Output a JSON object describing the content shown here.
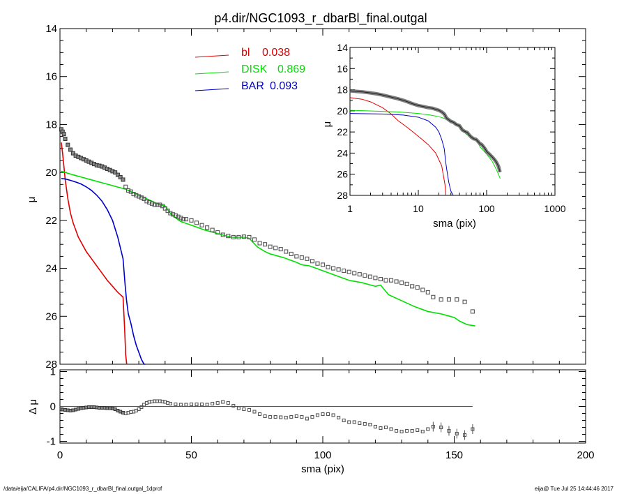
{
  "title": "p4.dir/NGC1093_r_dbarBl_final.outgal",
  "footer": {
    "left": "/data/eija/CALIFA/p4.dir/NGC1093_r_dbarBl_final.outgal_1dprof",
    "right": "eija@  Tue Jul 25 14:44:46 2017"
  },
  "chart_data": [
    {
      "type": "line",
      "panel": "main",
      "xlabel": "",
      "ylabel": "μ",
      "xlim": [
        0,
        200
      ],
      "ylim": [
        28,
        14
      ],
      "y_inverted": true,
      "yticks": [
        "14",
        "16",
        "18",
        "20",
        "22",
        "24",
        "26",
        "28"
      ],
      "legend_position": "top-center",
      "series": [
        {
          "name": "bl",
          "value_label": "0.038",
          "color": "#e00000",
          "x": [
            0.5,
            1,
            2,
            3,
            4,
            5,
            6,
            7,
            8,
            10,
            12,
            14,
            16,
            18,
            20,
            22,
            24,
            24.6,
            25,
            25.4
          ],
          "y": [
            18.75,
            19.2,
            20.3,
            21.1,
            21.7,
            22.1,
            22.4,
            22.7,
            22.9,
            23.3,
            23.6,
            23.9,
            24.2,
            24.5,
            24.75,
            25.0,
            25.2,
            26.5,
            27.6,
            28.0
          ]
        },
        {
          "name": "DISK",
          "value_label": "0.869",
          "color": "#00e000",
          "x": [
            0.5,
            5,
            10,
            15,
            20,
            25,
            30,
            35,
            38,
            40,
            42,
            44,
            46,
            50,
            55,
            60,
            65,
            70,
            72,
            75,
            78,
            80,
            85,
            90,
            92,
            95,
            100,
            105,
            110,
            115,
            120,
            122,
            125,
            130,
            135,
            140,
            145,
            150,
            152,
            155,
            158
          ],
          "y": [
            19.95,
            20.1,
            20.25,
            20.4,
            20.55,
            20.7,
            20.95,
            21.2,
            21.35,
            21.4,
            21.7,
            21.9,
            22.05,
            22.2,
            22.4,
            22.55,
            22.7,
            22.7,
            22.75,
            23.1,
            23.3,
            23.4,
            23.55,
            23.75,
            23.85,
            23.9,
            24.1,
            24.3,
            24.5,
            24.6,
            24.75,
            24.7,
            25.1,
            25.35,
            25.6,
            25.8,
            25.9,
            26.05,
            26.2,
            26.35,
            26.4
          ]
        },
        {
          "name": "BAR",
          "value_label": "0.093",
          "color": "#0000c8",
          "x": [
            0.5,
            2,
            4,
            6,
            8,
            10,
            12,
            14,
            16,
            18,
            20,
            22,
            24,
            24.8,
            25.3,
            26,
            27,
            28,
            29,
            30,
            31,
            32,
            32.5
          ],
          "y": [
            20.25,
            20.27,
            20.33,
            20.4,
            20.48,
            20.6,
            20.75,
            20.95,
            21.2,
            21.55,
            22.0,
            22.7,
            23.6,
            24.7,
            25.3,
            25.9,
            26.3,
            26.8,
            27.2,
            27.5,
            27.8,
            28.0,
            28.0
          ]
        },
        {
          "name": "",
          "value_label": "",
          "color": "#555555",
          "role": "observed",
          "x": [
            0.5,
            1,
            1.5,
            2,
            3,
            4,
            5,
            6,
            7,
            8,
            9,
            10,
            11,
            12,
            13,
            14,
            15,
            16,
            17,
            18,
            19,
            20,
            21,
            22,
            23,
            24,
            25,
            26,
            27,
            28,
            29,
            30,
            31,
            32,
            33,
            34,
            35,
            36,
            37,
            38,
            39,
            40,
            41,
            42,
            43,
            44,
            45,
            46,
            47,
            48,
            50,
            52,
            54,
            56,
            58,
            60,
            62,
            64,
            66,
            68,
            70,
            72,
            74,
            76,
            78,
            80,
            82,
            84,
            86,
            88,
            90,
            92,
            94,
            96,
            98,
            100,
            102,
            104,
            106,
            108,
            110,
            112,
            114,
            116,
            118,
            120,
            122,
            124,
            126,
            128,
            130,
            132,
            134,
            136,
            138,
            140,
            142,
            145,
            148,
            151,
            154,
            157
          ],
          "y": [
            18.2,
            18.3,
            18.4,
            18.6,
            18.85,
            19.05,
            19.2,
            19.3,
            19.35,
            19.4,
            19.45,
            19.5,
            19.55,
            19.6,
            19.65,
            19.7,
            19.72,
            19.75,
            19.8,
            19.85,
            19.9,
            19.95,
            20.0,
            20.1,
            20.2,
            20.3,
            20.6,
            20.75,
            20.8,
            20.9,
            20.95,
            21.0,
            21.05,
            21.1,
            21.2,
            21.25,
            21.3,
            21.35,
            21.35,
            21.35,
            21.4,
            21.5,
            21.6,
            21.7,
            21.75,
            21.8,
            21.85,
            21.9,
            21.95,
            21.95,
            22.0,
            22.1,
            22.2,
            22.3,
            22.4,
            22.5,
            22.6,
            22.65,
            22.7,
            22.7,
            22.68,
            22.7,
            22.8,
            22.95,
            23.0,
            23.1,
            23.15,
            23.2,
            23.3,
            23.4,
            23.5,
            23.55,
            23.6,
            23.7,
            23.8,
            23.85,
            23.95,
            24.0,
            24.05,
            24.1,
            24.15,
            24.2,
            24.25,
            24.3,
            24.35,
            24.4,
            24.45,
            24.5,
            24.5,
            24.55,
            24.6,
            24.65,
            24.75,
            24.8,
            24.9,
            25.0,
            25.2,
            25.3,
            25.3,
            25.3,
            25.4,
            25.8
          ]
        }
      ]
    },
    {
      "type": "scatter",
      "panel": "residual",
      "xlabel": "sma (pix)",
      "ylabel": "Δ μ",
      "xlim": [
        0,
        200
      ],
      "ylim": [
        -1.05,
        1.05
      ],
      "xticks": [
        "0",
        "50",
        "100",
        "150",
        "200"
      ],
      "yticks": [
        "1",
        "0",
        "-1"
      ],
      "reference_line": 0,
      "series": [
        {
          "name": "",
          "role": "residual",
          "x": [
            0.5,
            1,
            2,
            3,
            4,
            5,
            6,
            7,
            8,
            9,
            10,
            11,
            12,
            13,
            14,
            15,
            16,
            17,
            18,
            19,
            20,
            21,
            22,
            23,
            24,
            25,
            26,
            27,
            28,
            29,
            30,
            31,
            32,
            33,
            34,
            35,
            36,
            37,
            38,
            39,
            40,
            41,
            42,
            44,
            46,
            48,
            50,
            52,
            54,
            56,
            58,
            60,
            62,
            64,
            66,
            68,
            70,
            72,
            74,
            76,
            78,
            80,
            82,
            84,
            86,
            88,
            90,
            92,
            94,
            96,
            98,
            100,
            102,
            104,
            106,
            108,
            110,
            112,
            114,
            116,
            118,
            120,
            122,
            124,
            126,
            128,
            130,
            132,
            134,
            136,
            138,
            140,
            142,
            145,
            148,
            151,
            154,
            157
          ],
          "y": [
            -0.08,
            -0.09,
            -0.1,
            -0.11,
            -0.12,
            -0.11,
            -0.09,
            -0.07,
            -0.05,
            -0.04,
            -0.03,
            -0.02,
            -0.02,
            -0.02,
            -0.03,
            -0.04,
            -0.04,
            -0.04,
            -0.05,
            -0.05,
            -0.06,
            -0.08,
            -0.12,
            -0.15,
            -0.18,
            -0.2,
            -0.18,
            -0.16,
            -0.15,
            -0.12,
            -0.08,
            -0.02,
            0.05,
            0.1,
            0.13,
            0.14,
            0.15,
            0.15,
            0.15,
            0.14,
            0.13,
            0.1,
            0.08,
            0.06,
            0.05,
            0.05,
            0.06,
            0.06,
            0.06,
            0.05,
            0.08,
            0.1,
            0.13,
            0.1,
            0.02,
            -0.05,
            -0.08,
            -0.1,
            -0.15,
            -0.22,
            -0.28,
            -0.3,
            -0.3,
            -0.31,
            -0.32,
            -0.3,
            -0.28,
            -0.3,
            -0.35,
            -0.3,
            -0.25,
            -0.22,
            -0.22,
            -0.25,
            -0.32,
            -0.4,
            -0.45,
            -0.45,
            -0.48,
            -0.5,
            -0.52,
            -0.58,
            -0.62,
            -0.6,
            -0.65,
            -0.7,
            -0.72,
            -0.7,
            -0.7,
            -0.68,
            -0.72,
            -0.65,
            -0.58,
            -0.6,
            -0.7,
            -0.78,
            -0.82,
            -0.65
          ]
        }
      ]
    },
    {
      "type": "line",
      "panel": "inset",
      "xlabel": "sma (pix)",
      "ylabel": "μ",
      "x_scale": "log",
      "xlim": [
        1,
        1000
      ],
      "ylim": [
        28,
        14
      ],
      "y_inverted": true,
      "xticks": [
        "1",
        "10",
        "100",
        "1000"
      ],
      "yticks": [
        "14",
        "16",
        "18",
        "20",
        "22",
        "24",
        "26",
        "28"
      ],
      "series": [
        {
          "name": "bl",
          "color": "#e00000",
          "x": [
            1,
            1.5,
            2,
            3,
            4,
            5,
            7,
            10,
            14,
            18,
            22,
            24.6,
            25.3
          ],
          "y": [
            18.75,
            18.9,
            19.15,
            19.7,
            20.3,
            20.9,
            21.6,
            22.4,
            23.2,
            24.0,
            25.2,
            27.0,
            28.0
          ]
        },
        {
          "name": "DISK",
          "color": "#00e000",
          "x": [
            1,
            3,
            5,
            10,
            15,
            20,
            25,
            30,
            40,
            50,
            60,
            70,
            80,
            100,
            120,
            140,
            158
          ],
          "y": [
            19.95,
            20.05,
            20.1,
            20.25,
            20.4,
            20.55,
            20.75,
            20.95,
            21.4,
            22.2,
            22.5,
            22.7,
            23.4,
            24.1,
            24.75,
            25.6,
            26.4
          ]
        },
        {
          "name": "BAR",
          "color": "#0000c8",
          "x": [
            1,
            3,
            6,
            10,
            14,
            18,
            20,
            22,
            24,
            25,
            26,
            28,
            30,
            32.5
          ],
          "y": [
            20.25,
            20.3,
            20.4,
            20.6,
            20.95,
            21.55,
            22.0,
            22.7,
            23.6,
            24.7,
            25.5,
            26.8,
            27.6,
            28.0
          ]
        },
        {
          "name": "",
          "color": "#555555",
          "role": "observed",
          "x": [
            1,
            1.2,
            1.5,
            2,
            2.5,
            3,
            4,
            5,
            6,
            7,
            8,
            10,
            12,
            14,
            16,
            18,
            20,
            22,
            24,
            26,
            28,
            30,
            33,
            36,
            40,
            44,
            48,
            52,
            56,
            60,
            65,
            70,
            75,
            80,
            85,
            90,
            95,
            100,
            110,
            120,
            130,
            140,
            150,
            157
          ],
          "y": [
            18.1,
            18.15,
            18.2,
            18.3,
            18.4,
            18.5,
            18.7,
            18.85,
            19.0,
            19.15,
            19.3,
            19.5,
            19.6,
            19.7,
            19.75,
            19.85,
            19.95,
            20.1,
            20.3,
            20.7,
            20.85,
            21.0,
            21.1,
            21.3,
            21.4,
            21.8,
            21.95,
            22.05,
            22.3,
            22.5,
            22.65,
            22.7,
            22.9,
            23.1,
            23.2,
            23.4,
            23.6,
            23.85,
            24.1,
            24.35,
            24.6,
            24.9,
            25.3,
            25.8
          ]
        }
      ]
    }
  ]
}
